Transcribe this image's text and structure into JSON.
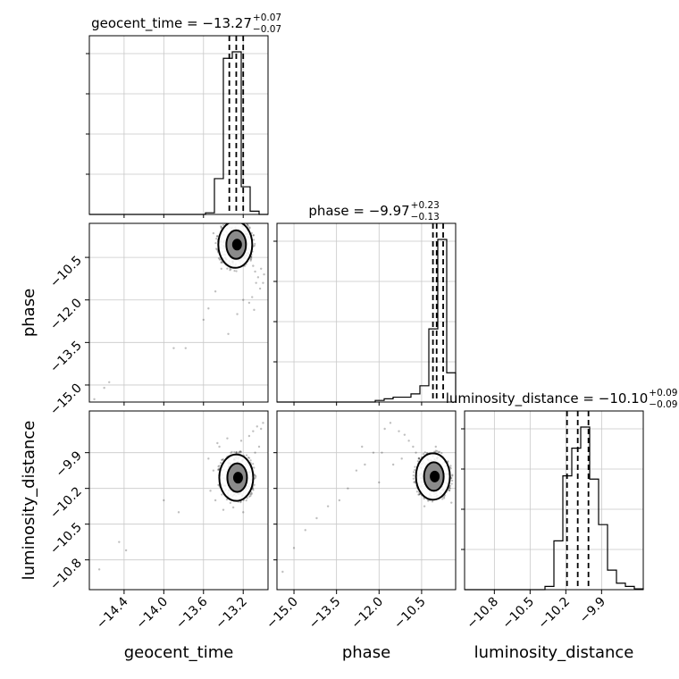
{
  "chart_data": {
    "type": "corner",
    "parameters": [
      "geocent_time",
      "phase",
      "luminosity_distance"
    ],
    "axis_labels": [
      "geocent_time",
      "phase",
      "luminosity_distance"
    ],
    "titles": [
      {
        "text": "geocent_time = −13.27",
        "sup": "+0.07",
        "sub": "−0.07"
      },
      {
        "text": "phase = −9.97",
        "sup": "+0.23",
        "sub": "−0.13"
      },
      {
        "text": "luminosity_distance = −10.10",
        "sup": "+0.09",
        "sub": "−0.09"
      }
    ],
    "ranges": [
      [
        -14.75,
        -12.95
      ],
      [
        -15.6,
        -9.3
      ],
      [
        -11.05,
        -9.55
      ]
    ],
    "ticks": [
      {
        "values": [
          -14.4,
          -14.0,
          -13.6,
          -13.2
        ],
        "labels": [
          "−14.4",
          "−14.0",
          "−13.6",
          "−13.2"
        ]
      },
      {
        "values": [
          -15.0,
          -13.5,
          -12.0,
          -10.5
        ],
        "labels": [
          "−15.0",
          "−13.5",
          "−12.0",
          "−10.5"
        ]
      },
      {
        "values": [
          -10.8,
          -10.5,
          -10.2,
          -9.9
        ],
        "labels": [
          "−10.8",
          "−10.5",
          "−10.2",
          "−9.9"
        ]
      }
    ],
    "quantiles": [
      [
        -13.34,
        -13.27,
        -13.2
      ],
      [
        -10.1,
        -9.97,
        -9.74
      ],
      [
        -10.19,
        -10.1,
        -10.01
      ]
    ],
    "histograms": [
      {
        "edges": [
          -14.75,
          -14.66,
          -14.57,
          -14.48,
          -14.39,
          -14.3,
          -14.21,
          -14.12,
          -14.03,
          -13.94,
          -13.85,
          -13.76,
          -13.67,
          -13.58,
          -13.49,
          -13.4,
          -13.31,
          -13.22,
          -13.13,
          -13.04,
          -12.95
        ],
        "counts": [
          0,
          0,
          0,
          0,
          0,
          0,
          0,
          0,
          0,
          0,
          0,
          0,
          0,
          0.01,
          0.22,
          0.96,
          1.0,
          0.17,
          0.02,
          0
        ]
      },
      {
        "edges": [
          -15.6,
          -15.285,
          -14.97,
          -14.655,
          -14.34,
          -14.025,
          -13.71,
          -13.395,
          -13.08,
          -12.765,
          -12.45,
          -12.135,
          -11.82,
          -11.505,
          -11.19,
          -10.875,
          -10.56,
          -10.245,
          -9.93,
          -9.615,
          -9.3
        ],
        "counts": [
          0,
          0,
          0,
          0,
          0,
          0,
          0,
          0,
          0,
          0,
          0,
          0.01,
          0.02,
          0.03,
          0.03,
          0.05,
          0.1,
          0.45,
          1.0,
          0.18
        ]
      },
      {
        "edges": [
          -11.05,
          -10.975,
          -10.9,
          -10.825,
          -10.75,
          -10.675,
          -10.6,
          -10.525,
          -10.45,
          -10.375,
          -10.3,
          -10.225,
          -10.15,
          -10.075,
          -10.0,
          -9.925,
          -9.85,
          -9.775,
          -9.7,
          -9.625,
          -9.55
        ],
        "counts": [
          0,
          0,
          0,
          0,
          0,
          0,
          0,
          0,
          0,
          0.02,
          0.3,
          0.7,
          0.87,
          1.0,
          0.68,
          0.4,
          0.12,
          0.04,
          0.02,
          0.005
        ]
      }
    ],
    "pairs": [
      {
        "x": "geocent_time",
        "y": "phase",
        "center": [
          -13.28,
          -10.05
        ],
        "points": [
          [
            -13.5,
            -9.65
          ],
          [
            -13.46,
            -9.75
          ],
          [
            -13.42,
            -9.72
          ],
          [
            -13.38,
            -9.9
          ],
          [
            -13.35,
            -9.8
          ],
          [
            -13.3,
            -9.7
          ],
          [
            -13.25,
            -9.85
          ],
          [
            -13.22,
            -10.25
          ],
          [
            -13.18,
            -10.15
          ],
          [
            -13.15,
            -10.35
          ],
          [
            -13.12,
            -10.55
          ],
          [
            -13.1,
            -10.8
          ],
          [
            -13.08,
            -11.0
          ],
          [
            -13.05,
            -11.2
          ],
          [
            -13.02,
            -10.9
          ],
          [
            -13.0,
            -11.4
          ],
          [
            -12.99,
            -11.1
          ],
          [
            -13.03,
            -11.6
          ],
          [
            -13.07,
            -11.4
          ],
          [
            -13.11,
            -11.9
          ],
          [
            -13.14,
            -12.1
          ],
          [
            -13.09,
            -12.35
          ],
          [
            -13.2,
            -12.0
          ],
          [
            -13.26,
            -12.5
          ],
          [
            -13.35,
            -13.2
          ],
          [
            -13.6,
            -12.7
          ],
          [
            -13.48,
            -11.7
          ],
          [
            -13.55,
            -12.3
          ],
          [
            -13.42,
            -10.9
          ],
          [
            -13.78,
            -13.7
          ],
          [
            -13.9,
            -13.7
          ],
          [
            -14.55,
            -14.9
          ],
          [
            -14.6,
            -15.1
          ],
          [
            -14.7,
            -15.5
          ],
          [
            -13.4,
            -10.4
          ],
          [
            -13.33,
            -10.3
          ],
          [
            -13.25,
            -10.6
          ],
          [
            -13.18,
            -10.7
          ]
        ]
      },
      {
        "x": "geocent_time",
        "y": "luminosity_distance",
        "center": [
          -13.27,
          -10.11
        ],
        "points": [
          [
            -13.5,
            -10.05
          ],
          [
            -13.48,
            -10.3
          ],
          [
            -13.44,
            -9.85
          ],
          [
            -13.4,
            -10.38
          ],
          [
            -13.36,
            -9.78
          ],
          [
            -13.3,
            -10.36
          ],
          [
            -13.22,
            -9.8
          ],
          [
            -13.14,
            -9.76
          ],
          [
            -13.1,
            -9.72
          ],
          [
            -13.06,
            -9.68
          ],
          [
            -13.02,
            -9.7
          ],
          [
            -13.0,
            -9.65
          ],
          [
            -13.12,
            -10.02
          ],
          [
            -13.16,
            -10.28
          ],
          [
            -13.2,
            -10.4
          ],
          [
            -13.53,
            -10.22
          ],
          [
            -13.55,
            -9.95
          ],
          [
            -13.46,
            -9.82
          ],
          [
            -13.08,
            -9.9
          ],
          [
            -13.04,
            -9.85
          ],
          [
            -13.85,
            -10.4
          ],
          [
            -14.0,
            -10.3
          ],
          [
            -14.38,
            -10.72
          ],
          [
            -14.45,
            -10.65
          ],
          [
            -14.65,
            -10.88
          ]
        ]
      },
      {
        "x": "phase",
        "y": "luminosity_distance",
        "center": [
          -10.1,
          -10.1
        ],
        "points": [
          [
            -11.8,
            -9.7
          ],
          [
            -11.6,
            -9.65
          ],
          [
            -11.3,
            -9.72
          ],
          [
            -11.1,
            -9.75
          ],
          [
            -10.95,
            -9.8
          ],
          [
            -10.8,
            -9.85
          ],
          [
            -10.7,
            -9.9
          ],
          [
            -10.6,
            -9.95
          ],
          [
            -11.9,
            -9.9
          ],
          [
            -12.2,
            -9.9
          ],
          [
            -12.5,
            -10.0
          ],
          [
            -12.8,
            -10.05
          ],
          [
            -13.1,
            -10.2
          ],
          [
            -13.4,
            -10.3
          ],
          [
            -13.8,
            -10.35
          ],
          [
            -14.2,
            -10.45
          ],
          [
            -14.6,
            -10.55
          ],
          [
            -15.0,
            -10.7
          ],
          [
            -15.4,
            -10.9
          ],
          [
            -11.5,
            -10.0
          ],
          [
            -12.0,
            -10.15
          ],
          [
            -10.4,
            -10.35
          ],
          [
            -10.2,
            -10.3
          ],
          [
            -9.8,
            -10.25
          ],
          [
            -9.6,
            -10.05
          ],
          [
            -9.5,
            -10.2
          ],
          [
            -9.45,
            -10.32
          ],
          [
            -10.0,
            -9.85
          ],
          [
            -11.2,
            -9.95
          ],
          [
            -12.6,
            -9.85
          ]
        ]
      }
    ]
  }
}
